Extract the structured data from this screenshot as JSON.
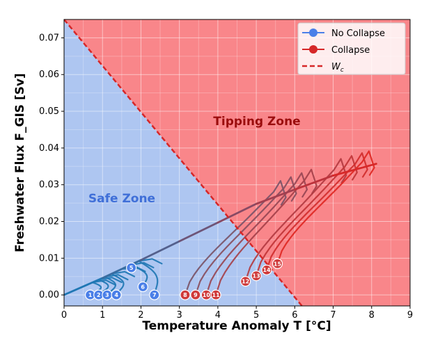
{
  "chart_data": {
    "type": "line",
    "xlabel": "Temperature Anomaly T [°C]",
    "ylabel": "Freshwater Flux F_GIS [Sv]",
    "xlim": [
      0,
      9
    ],
    "ylim": [
      -0.003,
      0.075
    ],
    "xticks": [
      "0",
      "1",
      "2",
      "3",
      "4",
      "5",
      "6",
      "7",
      "8",
      "9"
    ],
    "yticks": [
      "0.00",
      "0.01",
      "0.02",
      "0.03",
      "0.04",
      "0.05",
      "0.06",
      "0.07"
    ],
    "zones": {
      "safe_label": "Safe Zone",
      "tipping_label": "Tipping Zone",
      "safe_color": "#aec6f1",
      "tipping_color": "#f9868a"
    },
    "threshold_line": {
      "name": "W_c",
      "points": [
        [
          0,
          0.075
        ],
        [
          5.95,
          0
        ]
      ],
      "color": "#d62728"
    },
    "envelope": {
      "points": [
        [
          0,
          0
        ],
        [
          1,
          0.0046
        ],
        [
          2,
          0.0095
        ],
        [
          3,
          0.0146
        ],
        [
          4,
          0.0197
        ],
        [
          5,
          0.0248
        ],
        [
          6,
          0.0287
        ],
        [
          7,
          0.0325
        ],
        [
          8.12,
          0.0357
        ]
      ]
    },
    "legend": {
      "position": "top-right",
      "entries": [
        {
          "label": "No Collapse",
          "color": "#4a7fe8",
          "style": "marker-line"
        },
        {
          "label": "Collapse",
          "color": "#d62728",
          "style": "marker-line"
        },
        {
          "label": "W",
          "sub": "c",
          "color": "#d62728",
          "style": "dashed"
        }
      ]
    },
    "series": [
      {
        "id": "1",
        "collapse": false,
        "start": [
          0.68,
          0
        ]
      },
      {
        "id": "2",
        "collapse": false,
        "start": [
          0.9,
          0
        ]
      },
      {
        "id": "3",
        "collapse": false,
        "start": [
          1.12,
          0
        ]
      },
      {
        "id": "4",
        "collapse": false,
        "start": [
          1.36,
          0
        ]
      },
      {
        "id": "5",
        "collapse": false,
        "start": [
          1.75,
          0.0074
        ]
      },
      {
        "id": "6",
        "collapse": false,
        "start": [
          2.05,
          0.0022
        ]
      },
      {
        "id": "7",
        "collapse": false,
        "start": [
          2.35,
          0
        ]
      },
      {
        "id": "8",
        "collapse": true,
        "start": [
          3.15,
          0
        ]
      },
      {
        "id": "9",
        "collapse": true,
        "start": [
          3.42,
          0
        ]
      },
      {
        "id": "10",
        "collapse": true,
        "start": [
          3.7,
          0
        ]
      },
      {
        "id": "11",
        "collapse": true,
        "start": [
          3.95,
          0
        ]
      },
      {
        "id": "12",
        "collapse": true,
        "start": [
          4.72,
          0.0037
        ]
      },
      {
        "id": "13",
        "collapse": true,
        "start": [
          5.0,
          0.0052
        ]
      },
      {
        "id": "14",
        "collapse": true,
        "start": [
          5.27,
          0.0068
        ]
      },
      {
        "id": "15",
        "collapse": true,
        "start": [
          5.55,
          0.0085
        ]
      }
    ]
  }
}
